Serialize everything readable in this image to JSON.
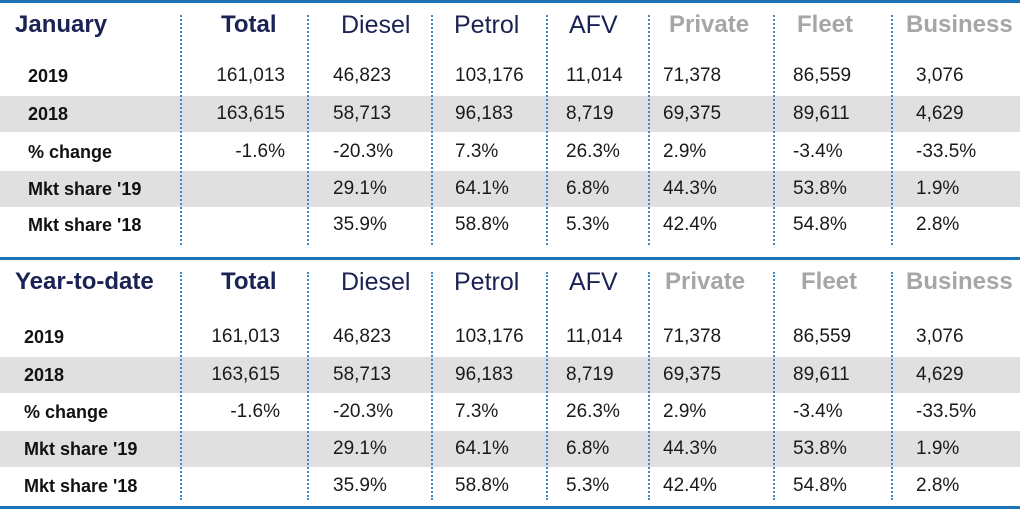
{
  "columns": {
    "total": "Total",
    "diesel": "Diesel",
    "petrol": "Petrol",
    "afv": "AFV",
    "private": "Private",
    "fleet": "Fleet",
    "business": "Business"
  },
  "sections": [
    {
      "title": "January",
      "rows": [
        {
          "label": "2019",
          "total": "161,013",
          "diesel": "46,823",
          "petrol": "103,176",
          "afv": "11,014",
          "private": "71,378",
          "fleet": "86,559",
          "business": "3,076"
        },
        {
          "label": "2018",
          "total": "163,615",
          "diesel": "58,713",
          "petrol": "96,183",
          "afv": "8,719",
          "private": "69,375",
          "fleet": "89,611",
          "business": "4,629"
        },
        {
          "label": "% change",
          "total": "-1.6%",
          "diesel": "-20.3%",
          "petrol": "7.3%",
          "afv": "26.3%",
          "private": "2.9%",
          "fleet": "-3.4%",
          "business": "-33.5%"
        },
        {
          "label": "Mkt share '19",
          "total": "",
          "diesel": "29.1%",
          "petrol": "64.1%",
          "afv": "6.8%",
          "private": "44.3%",
          "fleet": "53.8%",
          "business": "1.9%"
        },
        {
          "label": "Mkt share '18",
          "total": "",
          "diesel": "35.9%",
          "petrol": "58.8%",
          "afv": "5.3%",
          "private": "42.4%",
          "fleet": "54.8%",
          "business": "2.8%"
        }
      ]
    },
    {
      "title": "Year-to-date",
      "rows": [
        {
          "label": "2019",
          "total": "161,013",
          "diesel": "46,823",
          "petrol": "103,176",
          "afv": "11,014",
          "private": "71,378",
          "fleet": "86,559",
          "business": "3,076"
        },
        {
          "label": "2018",
          "total": "163,615",
          "diesel": "58,713",
          "petrol": "96,183",
          "afv": "8,719",
          "private": "69,375",
          "fleet": "89,611",
          "business": "4,629"
        },
        {
          "label": "% change",
          "total": "-1.6%",
          "diesel": "-20.3%",
          "petrol": "7.3%",
          "afv": "26.3%",
          "private": "2.9%",
          "fleet": "-3.4%",
          "business": "-33.5%"
        },
        {
          "label": "Mkt share '19",
          "total": "",
          "diesel": "29.1%",
          "petrol": "64.1%",
          "afv": "6.8%",
          "private": "44.3%",
          "fleet": "53.8%",
          "business": "1.9%"
        },
        {
          "label": "Mkt share '18",
          "total": "",
          "diesel": "35.9%",
          "petrol": "58.8%",
          "afv": "5.3%",
          "private": "42.4%",
          "fleet": "54.8%",
          "business": "2.8%"
        }
      ]
    }
  ]
}
